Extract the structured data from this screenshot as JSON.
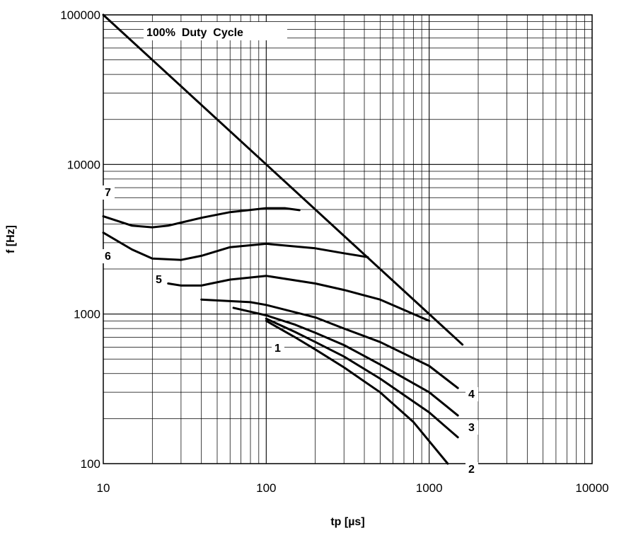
{
  "chart_data": {
    "type": "line",
    "title": "",
    "xlabel": "tp [µs]",
    "ylabel": "f [Hz]",
    "x_scale": "log",
    "y_scale": "log",
    "xlim": [
      10,
      10000
    ],
    "ylim": [
      100,
      100000
    ],
    "x_ticks": [
      "10",
      "100",
      "1000",
      "10000"
    ],
    "y_ticks": [
      "100",
      "1000",
      "10000",
      "100000"
    ],
    "grid": true,
    "annotations": [
      {
        "text": "100%  Duty  Cycle"
      }
    ],
    "series": [
      {
        "name": "100%  Duty  Cycle",
        "points": [
          [
            10,
            100000
          ],
          [
            1600,
            625
          ]
        ]
      },
      {
        "name": "7",
        "points": [
          [
            10,
            4500
          ],
          [
            15,
            3900
          ],
          [
            20,
            3800
          ],
          [
            25,
            3900
          ],
          [
            40,
            4400
          ],
          [
            60,
            4800
          ],
          [
            100,
            5100
          ],
          [
            130,
            5100
          ],
          [
            160,
            4950
          ]
        ]
      },
      {
        "name": "6",
        "points": [
          [
            10,
            3500
          ],
          [
            15,
            2700
          ],
          [
            20,
            2350
          ],
          [
            30,
            2300
          ],
          [
            40,
            2450
          ],
          [
            60,
            2800
          ],
          [
            100,
            2950
          ],
          [
            200,
            2750
          ],
          [
            300,
            2550
          ],
          [
            420,
            2400
          ]
        ]
      },
      {
        "name": "5",
        "points": [
          [
            25,
            1600
          ],
          [
            30,
            1550
          ],
          [
            40,
            1550
          ],
          [
            60,
            1700
          ],
          [
            100,
            1800
          ],
          [
            200,
            1600
          ],
          [
            300,
            1450
          ],
          [
            500,
            1250
          ],
          [
            1000,
            900
          ]
        ]
      },
      {
        "name": "4",
        "points": [
          [
            40,
            1250
          ],
          [
            60,
            1220
          ],
          [
            80,
            1200
          ],
          [
            100,
            1150
          ],
          [
            200,
            950
          ],
          [
            300,
            800
          ],
          [
            500,
            650
          ],
          [
            1000,
            450
          ],
          [
            1500,
            320
          ]
        ]
      },
      {
        "name": "3",
        "points": [
          [
            63,
            1100
          ],
          [
            100,
            980
          ],
          [
            150,
            850
          ],
          [
            200,
            750
          ],
          [
            300,
            620
          ],
          [
            500,
            460
          ],
          [
            1000,
            300
          ],
          [
            1500,
            210
          ]
        ]
      },
      {
        "name": "2",
        "points": [
          [
            100,
            930
          ],
          [
            150,
            760
          ],
          [
            200,
            650
          ],
          [
            300,
            520
          ],
          [
            500,
            370
          ],
          [
            1000,
            220
          ],
          [
            1500,
            150
          ]
        ]
      },
      {
        "name": "1",
        "points": [
          [
            100,
            900
          ],
          [
            150,
            700
          ],
          [
            200,
            580
          ],
          [
            300,
            440
          ],
          [
            500,
            300
          ],
          [
            800,
            190
          ],
          [
            1300,
            100
          ]
        ]
      }
    ]
  }
}
